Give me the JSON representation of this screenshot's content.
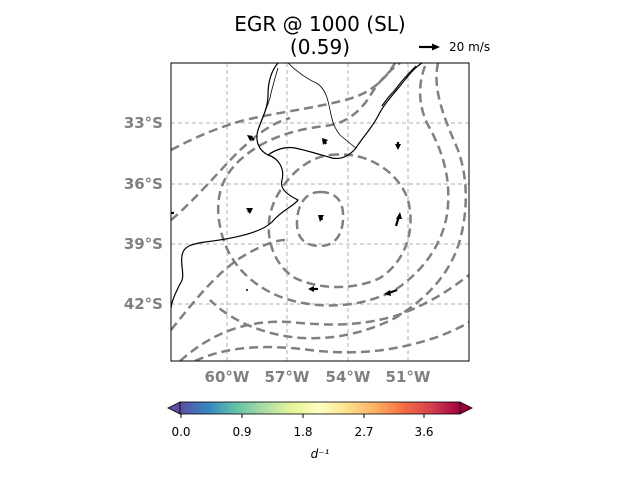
{
  "title": {
    "line1": "EGR @ 1000 (SL)",
    "line2": "(0.59)"
  },
  "quiver_key": {
    "label": "20 m/s"
  },
  "map": {
    "lat_ticks": [
      "33°S",
      "36°S",
      "39°S",
      "42°S"
    ],
    "lon_ticks": [
      "60°W",
      "57°W",
      "54°W",
      "51°W"
    ],
    "gridlines": true
  },
  "colorbar": {
    "colormap": "Spectral_r",
    "ticks": [
      "0.0",
      "0.9",
      "1.8",
      "2.7",
      "3.6"
    ],
    "label": "d⁻¹",
    "extend": "both",
    "colors": [
      "#5e4fa2",
      "#3288bd",
      "#66c2a5",
      "#abdda4",
      "#e6f598",
      "#ffffbf",
      "#fee08b",
      "#fdae61",
      "#f46d43",
      "#d53e4f",
      "#9e0142"
    ]
  },
  "contour_style": {
    "color": "#808080",
    "linestyle": "dashed"
  }
}
